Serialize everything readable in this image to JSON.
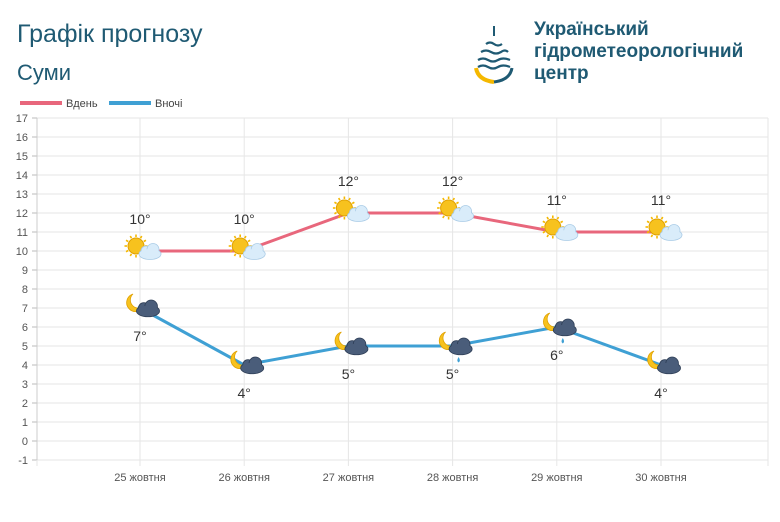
{
  "header": {
    "title": "Графік прогнозу",
    "city": "Суми",
    "org_line1": "Український",
    "org_line2": "гідрометеорологічний",
    "org_line3": "центр"
  },
  "colors": {
    "day": "#e8677c",
    "night": "#3fa0d4",
    "grid": "#e6e6e6",
    "text": "#333333",
    "brand": "#1f5a73",
    "sun": "#f5b800"
  },
  "chart_data": {
    "type": "line",
    "categories": [
      "25 жовтня",
      "26 жовтня",
      "27 жовтня",
      "28 жовтня",
      "29 жовтня",
      "30 жовтня"
    ],
    "series": [
      {
        "name": "Вдень",
        "values": [
          10,
          10,
          12,
          12,
          11,
          11
        ],
        "labels": [
          "10°",
          "10°",
          "12°",
          "12°",
          "11°",
          "11°"
        ],
        "icons": [
          "sun-cloud",
          "sun-cloud",
          "sun-cloud",
          "sun-cloud",
          "sun-cloud",
          "sun-cloud"
        ]
      },
      {
        "name": "Вночі",
        "values": [
          7,
          4,
          5,
          5,
          6,
          4
        ],
        "labels": [
          "7°",
          "4°",
          "5°",
          "5°",
          "6°",
          "4°"
        ],
        "icons": [
          "moon-cloud",
          "moon-cloud",
          "moon-cloud",
          "moon-cloud-rain",
          "moon-cloud-rain",
          "moon-cloud"
        ]
      }
    ],
    "yticks": [
      "-1",
      "0",
      "1",
      "2",
      "3",
      "4",
      "5",
      "6",
      "7",
      "8",
      "9",
      "10",
      "11",
      "12",
      "13",
      "14",
      "15",
      "16",
      "17"
    ],
    "ylim": [
      -1,
      17
    ],
    "grid": true,
    "legend": "top-left"
  }
}
